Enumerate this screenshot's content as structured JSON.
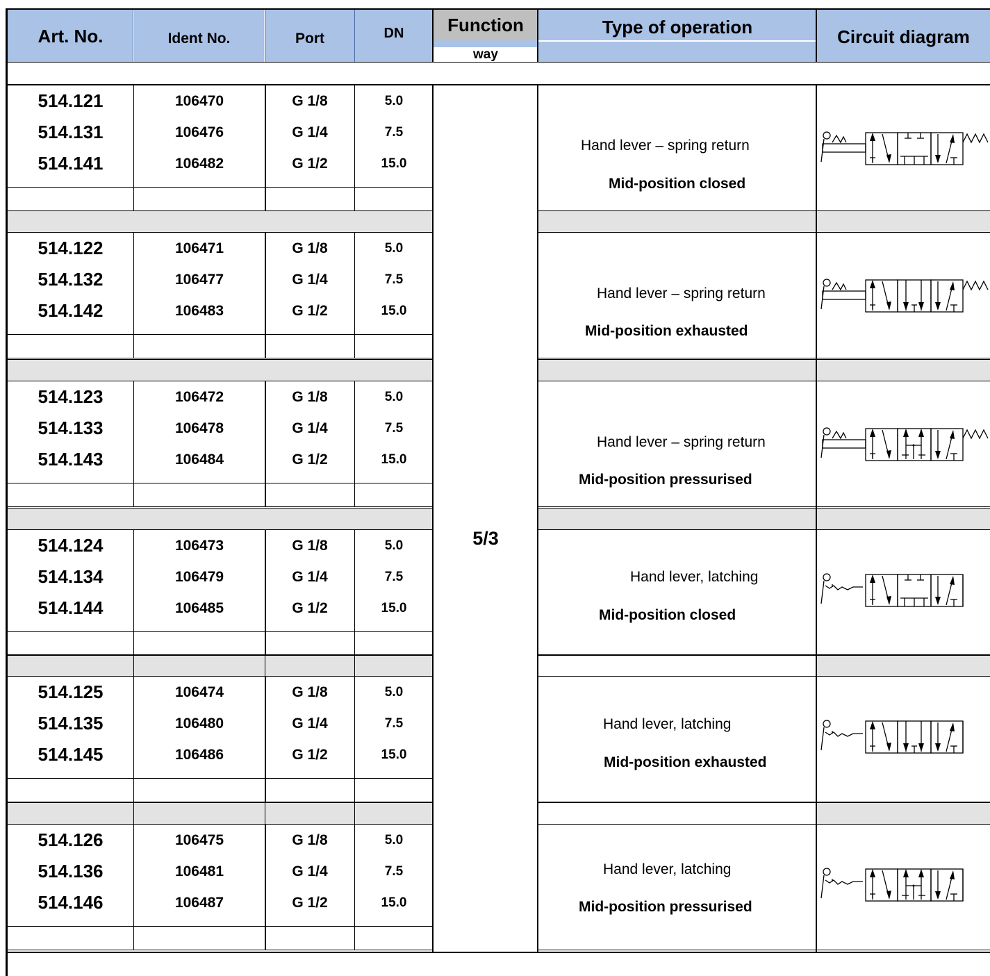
{
  "header": {
    "art_no": "Art. No.",
    "ident_no": "Ident No.",
    "port": "Port",
    "dn": "DN",
    "function": "Function",
    "function_sub": "way",
    "type_of_operation": "Type of operation",
    "circuit_diagram": "Circuit diagram"
  },
  "function_value": "5/3",
  "groups": [
    {
      "rows": [
        {
          "art": "514.121",
          "ident": "106470",
          "port": "G 1/8",
          "dn": "5.0"
        },
        {
          "art": "514.131",
          "ident": "106476",
          "port": "G 1/4",
          "dn": "7.5"
        },
        {
          "art": "514.141",
          "ident": "106482",
          "port": "G 1/2",
          "dn": "15.0"
        }
      ],
      "operation": "Hand lever – spring return",
      "mid_position": "Mid-position closed",
      "diagram_icon": "valve-5-3-spring-closed-icon"
    },
    {
      "rows": [
        {
          "art": "514.122",
          "ident": "106471",
          "port": "G 1/8",
          "dn": "5.0"
        },
        {
          "art": "514.132",
          "ident": "106477",
          "port": "G 1/4",
          "dn": "7.5"
        },
        {
          "art": "514.142",
          "ident": "106483",
          "port": "G 1/2",
          "dn": "15.0"
        }
      ],
      "operation": "Hand lever – spring return",
      "mid_position": "Mid-position exhausted",
      "diagram_icon": "valve-5-3-spring-exhausted-icon"
    },
    {
      "rows": [
        {
          "art": "514.123",
          "ident": "106472",
          "port": "G 1/8",
          "dn": "5.0"
        },
        {
          "art": "514.133",
          "ident": "106478",
          "port": "G 1/4",
          "dn": "7.5"
        },
        {
          "art": "514.143",
          "ident": "106484",
          "port": "G 1/2",
          "dn": "15.0"
        }
      ],
      "operation": "Hand lever – spring return",
      "mid_position": "Mid-position pressurised",
      "diagram_icon": "valve-5-3-spring-pressurised-icon"
    },
    {
      "rows": [
        {
          "art": "514.124",
          "ident": "106473",
          "port": "G 1/8",
          "dn": "5.0"
        },
        {
          "art": "514.134",
          "ident": "106479",
          "port": "G 1/4",
          "dn": "7.5"
        },
        {
          "art": "514.144",
          "ident": "106485",
          "port": "G 1/2",
          "dn": "15.0"
        }
      ],
      "operation": "Hand lever, latching",
      "mid_position": "Mid-position closed",
      "diagram_icon": "valve-5-3-latching-closed-icon"
    },
    {
      "rows": [
        {
          "art": "514.125",
          "ident": "106474",
          "port": "G 1/8",
          "dn": "5.0"
        },
        {
          "art": "514.135",
          "ident": "106480",
          "port": "G 1/4",
          "dn": "7.5"
        },
        {
          "art": "514.145",
          "ident": "106486",
          "port": "G 1/2",
          "dn": "15.0"
        }
      ],
      "operation": "Hand lever, latching",
      "mid_position": "Mid-position exhausted",
      "diagram_icon": "valve-5-3-latching-exhausted-icon"
    },
    {
      "rows": [
        {
          "art": "514.126",
          "ident": "106475",
          "port": "G 1/8",
          "dn": "5.0"
        },
        {
          "art": "514.136",
          "ident": "106481",
          "port": "G 1/4",
          "dn": "7.5"
        },
        {
          "art": "514.146",
          "ident": "106487",
          "port": "G 1/2",
          "dn": "15.0"
        }
      ],
      "operation": "Hand lever, latching",
      "mid_position": "Mid-position pressurised",
      "diagram_icon": "valve-5-3-latching-pressurised-icon"
    }
  ]
}
